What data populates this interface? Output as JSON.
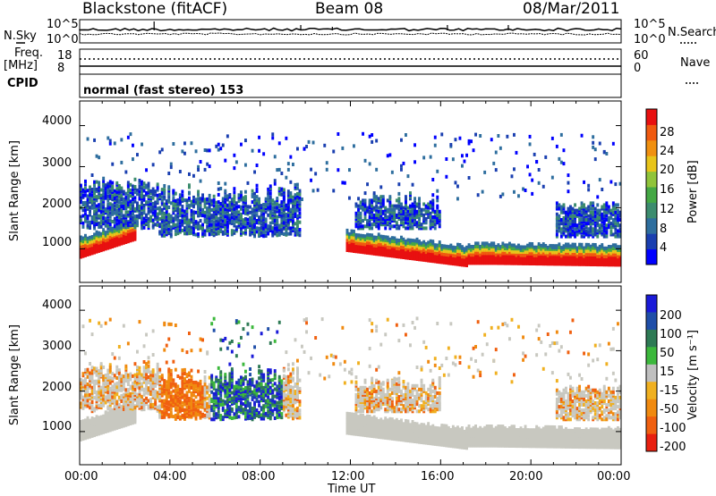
{
  "header": {
    "title": "Blackstone (fitACF)",
    "beam": "Beam 08",
    "date": "08/Mar/2011"
  },
  "noise_panel": {
    "left_label": "N.Sky",
    "right_label": "N.Search",
    "tick_hi": "10^5",
    "tick_lo": "10^0"
  },
  "freq_panel": {
    "left_label_line1": "Freq.",
    "left_label_line2": "[MHz]",
    "left_tick_hi": "18",
    "left_tick_lo": "8",
    "right_label": "Nave",
    "right_tick_hi": "60",
    "right_tick_lo": "0"
  },
  "cpid_panel": {
    "label": "CPID",
    "value": "normal (fast stereo) 153"
  },
  "colors": {
    "power_scale": [
      "#0000ff",
      "#1a3fb0",
      "#2e6e9e",
      "#3c8c6e",
      "#44a844",
      "#90c43a",
      "#e8c41a",
      "#f09010",
      "#f05a10",
      "#e81010"
    ],
    "velocity_scale": [
      "#1a1ad8",
      "#1f4ea8",
      "#2e7a55",
      "#3cb83c",
      "#bfbfbf",
      "#f0b020",
      "#f08a10",
      "#f06010",
      "#e82010"
    ],
    "ground_scatter": "#c8c8c0"
  },
  "chart_data": [
    {
      "type": "heatmap",
      "name": "power",
      "ylabel": "Slant Range [km]",
      "yticks": [
        "1000",
        "2000",
        "3000",
        "4000"
      ],
      "ylim": [
        180,
        4600
      ],
      "xlim": [
        0,
        24
      ],
      "colorbar_label": "Power [dB]",
      "colorbar_ticks": [
        "4",
        "8",
        "12",
        "16",
        "20",
        "24",
        "28"
      ],
      "bands": [
        {
          "t": [
            0,
            2.5
          ],
          "r": [
            850,
            1300
          ],
          "level": 9
        },
        {
          "t": [
            12.3,
            17
          ],
          "r": [
            700,
            1200
          ],
          "level": 9
        },
        {
          "t": [
            18.5,
            24
          ],
          "r": [
            650,
            1050
          ],
          "level": 9
        },
        {
          "t": [
            3.5,
            9.5
          ],
          "r": [
            1400,
            2600
          ],
          "level": 2
        }
      ]
    },
    {
      "type": "heatmap",
      "name": "velocity",
      "ylabel": "Slant Range [km]",
      "yticks": [
        "1000",
        "2000",
        "3000",
        "4000"
      ],
      "ylim": [
        180,
        4600
      ],
      "xlim": [
        0,
        24
      ],
      "colorbar_label": "Velocity [m s⁻¹]",
      "colorbar_ticks": [
        "200",
        "100",
        "50",
        "15",
        "-15",
        "-50",
        "-100",
        "-200"
      ]
    }
  ],
  "x_axis": {
    "ticks": [
      "00:00",
      "04:00",
      "08:00",
      "12:00",
      "16:00",
      "20:00",
      "00:00"
    ],
    "label": "Time UT"
  }
}
